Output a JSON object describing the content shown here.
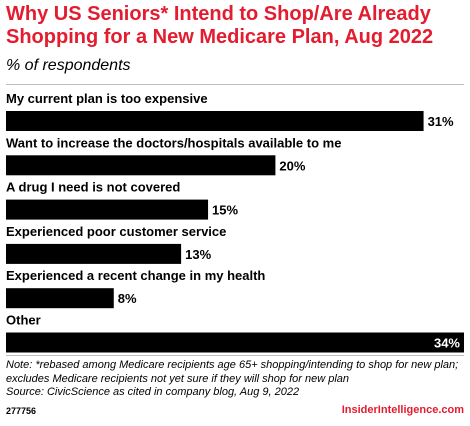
{
  "header": {
    "title": "Why US Seniors* Intend to Shop/Are Already Shopping for a New Medicare Plan, Aug 2022",
    "subtitle": "% of respondents"
  },
  "chart_data": {
    "type": "bar",
    "orientation": "horizontal",
    "categories": [
      "My current plan is too expensive",
      "Want to increase the doctors/hospitals available to me",
      "A drug I need is not covered",
      "Experienced poor customer service",
      "Experienced a recent change in my health",
      "Other"
    ],
    "values": [
      31,
      20,
      15,
      13,
      8,
      34
    ],
    "data_labels": [
      "31%",
      "20%",
      "15%",
      "13%",
      "8%",
      "34%"
    ],
    "xlim": [
      0,
      34
    ],
    "bar_color": "#000000",
    "grid": false,
    "legend": "none"
  },
  "footer": {
    "note": "Note: *rebased among Medicare recipients age 65+ shopping/intending to shop for new plan; excludes Medicare recipients not yet sure if they will shop for new plan",
    "source": "Source: CivicScience as cited in company blog, Aug 9, 2022",
    "id": "277756",
    "brand": "InsiderIntelligence.com"
  },
  "colors": {
    "accent": "#e31c2f",
    "rule": "#bdbdbd",
    "label_on_bar": "#ffffff"
  }
}
